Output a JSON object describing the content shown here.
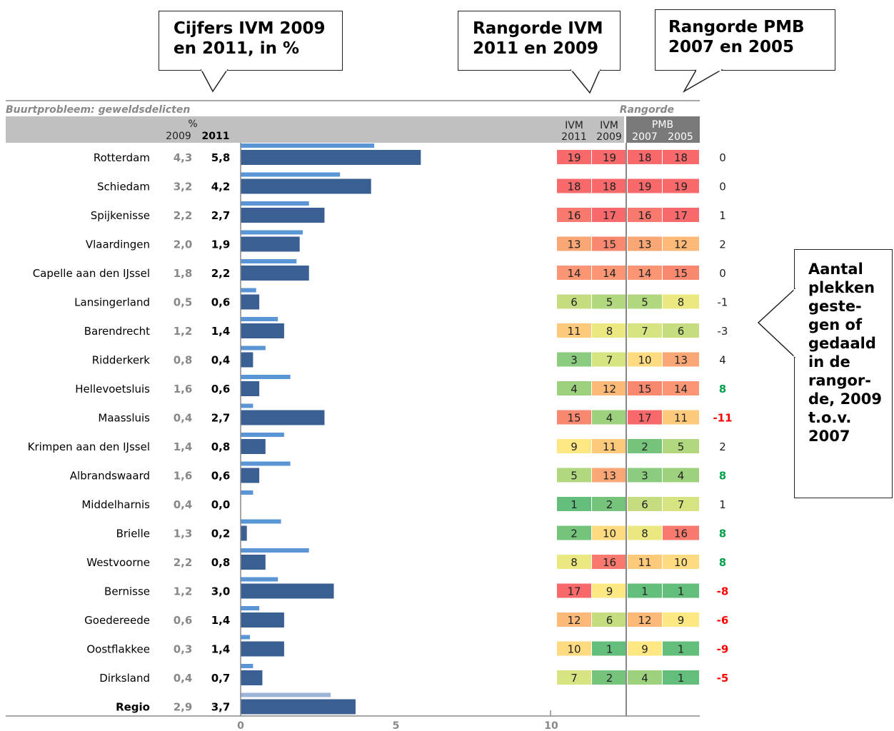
{
  "callouts": {
    "figures": "Cijfers IVM 2009 en 2011, in %",
    "rank_ivm": "Rangorde IVM 2011 en 2009",
    "rank_pmb": "Rangorde PMB 2007 en 2005",
    "change": "Aantal plekken geste-gen of gedaald in de rangor-de, 2009 t.o.v. 2007"
  },
  "chart_data": {
    "type": "bar",
    "title": "Buurtprobleem: geweldsdelicten",
    "unit_label": "%",
    "rank_header": "Rangorde",
    "col_2009": "2009",
    "col_2011": "2011",
    "rank_cols": {
      "ivm2011_top": "IVM",
      "ivm2011_bot": "2011",
      "ivm2009_top": "IVM",
      "ivm2009_bot": "2009",
      "pmb_top": "PMB",
      "pmb2007": "2007",
      "pmb2005": "2005"
    },
    "xlim": [
      0,
      15
    ],
    "x_ticks": [
      "0",
      "5",
      "10"
    ],
    "x_tick_values": [
      0,
      5,
      10
    ],
    "series": [
      {
        "name": "2009",
        "color": "#5a95d6"
      },
      {
        "name": "2011",
        "color": "#3a5f93"
      }
    ],
    "rows": [
      {
        "name": "Rotterdam",
        "v2009": "4,3",
        "v2011": "5,8",
        "n2009": 4.3,
        "n2011": 5.8,
        "r": [
          19,
          19,
          18,
          18
        ],
        "change": "0"
      },
      {
        "name": "Schiedam",
        "v2009": "3,2",
        "v2011": "4,2",
        "n2009": 3.2,
        "n2011": 4.2,
        "r": [
          18,
          18,
          19,
          19
        ],
        "change": "0"
      },
      {
        "name": "Spijkenisse",
        "v2009": "2,2",
        "v2011": "2,7",
        "n2009": 2.2,
        "n2011": 2.7,
        "r": [
          16,
          17,
          16,
          17
        ],
        "change": "1"
      },
      {
        "name": "Vlaardingen",
        "v2009": "2,0",
        "v2011": "1,9",
        "n2009": 2.0,
        "n2011": 1.9,
        "r": [
          13,
          15,
          13,
          12
        ],
        "change": "2"
      },
      {
        "name": "Capelle aan den IJssel",
        "v2009": "1,8",
        "v2011": "2,2",
        "n2009": 1.8,
        "n2011": 2.2,
        "r": [
          14,
          14,
          14,
          15
        ],
        "change": "0"
      },
      {
        "name": "Lansingerland",
        "v2009": "0,5",
        "v2011": "0,6",
        "n2009": 0.5,
        "n2011": 0.6,
        "r": [
          6,
          5,
          5,
          8
        ],
        "change": "-1"
      },
      {
        "name": "Barendrecht",
        "v2009": "1,2",
        "v2011": "1,4",
        "n2009": 1.2,
        "n2011": 1.4,
        "r": [
          11,
          8,
          7,
          6
        ],
        "change": "-3"
      },
      {
        "name": "Ridderkerk",
        "v2009": "0,8",
        "v2011": "0,4",
        "n2009": 0.8,
        "n2011": 0.4,
        "r": [
          3,
          7,
          10,
          13
        ],
        "change": "4"
      },
      {
        "name": "Hellevoetsluis",
        "v2009": "1,6",
        "v2011": "0,6",
        "n2009": 1.6,
        "n2011": 0.6,
        "r": [
          4,
          12,
          15,
          14
        ],
        "change": "8"
      },
      {
        "name": "Maassluis",
        "v2009": "0,4",
        "v2011": "2,7",
        "n2009": 0.4,
        "n2011": 2.7,
        "r": [
          15,
          4,
          17,
          11
        ],
        "change": "-11"
      },
      {
        "name": "Krimpen aan den IJssel",
        "v2009": "1,4",
        "v2011": "0,8",
        "n2009": 1.4,
        "n2011": 0.8,
        "r": [
          9,
          11,
          2,
          5
        ],
        "change": "2"
      },
      {
        "name": "Albrandswaard",
        "v2009": "1,6",
        "v2011": "0,6",
        "n2009": 1.6,
        "n2011": 0.6,
        "r": [
          5,
          13,
          3,
          4
        ],
        "change": "8"
      },
      {
        "name": "Middelharnis",
        "v2009": "0,4",
        "v2011": "0,0",
        "n2009": 0.4,
        "n2011": 0.0,
        "r": [
          1,
          2,
          6,
          7
        ],
        "change": "1"
      },
      {
        "name": "Brielle",
        "v2009": "1,3",
        "v2011": "0,2",
        "n2009": 1.3,
        "n2011": 0.2,
        "r": [
          2,
          10,
          8,
          16
        ],
        "change": "8"
      },
      {
        "name": "Westvoorne",
        "v2009": "2,2",
        "v2011": "0,8",
        "n2009": 2.2,
        "n2011": 0.8,
        "r": [
          8,
          16,
          11,
          10
        ],
        "change": "8"
      },
      {
        "name": "Bernisse",
        "v2009": "1,2",
        "v2011": "3,0",
        "n2009": 1.2,
        "n2011": 3.0,
        "r": [
          17,
          9,
          1,
          1
        ],
        "change": "-8"
      },
      {
        "name": "Goedereede",
        "v2009": "0,6",
        "v2011": "1,4",
        "n2009": 0.6,
        "n2011": 1.4,
        "r": [
          12,
          6,
          12,
          9
        ],
        "change": "-6"
      },
      {
        "name": "Oostflakkee",
        "v2009": "0,3",
        "v2011": "1,4",
        "n2009": 0.3,
        "n2011": 1.4,
        "r": [
          10,
          1,
          9,
          1
        ],
        "change": "-9"
      },
      {
        "name": "Dirksland",
        "v2009": "0,4",
        "v2011": "0,7",
        "n2009": 0.4,
        "n2011": 0.7,
        "r": [
          7,
          2,
          4,
          1
        ],
        "change": "-5"
      },
      {
        "name": "Regio",
        "v2009": "2,9",
        "v2011": "3,7",
        "n2009": 2.9,
        "n2011": 3.7,
        "r": null,
        "change": ""
      }
    ]
  }
}
